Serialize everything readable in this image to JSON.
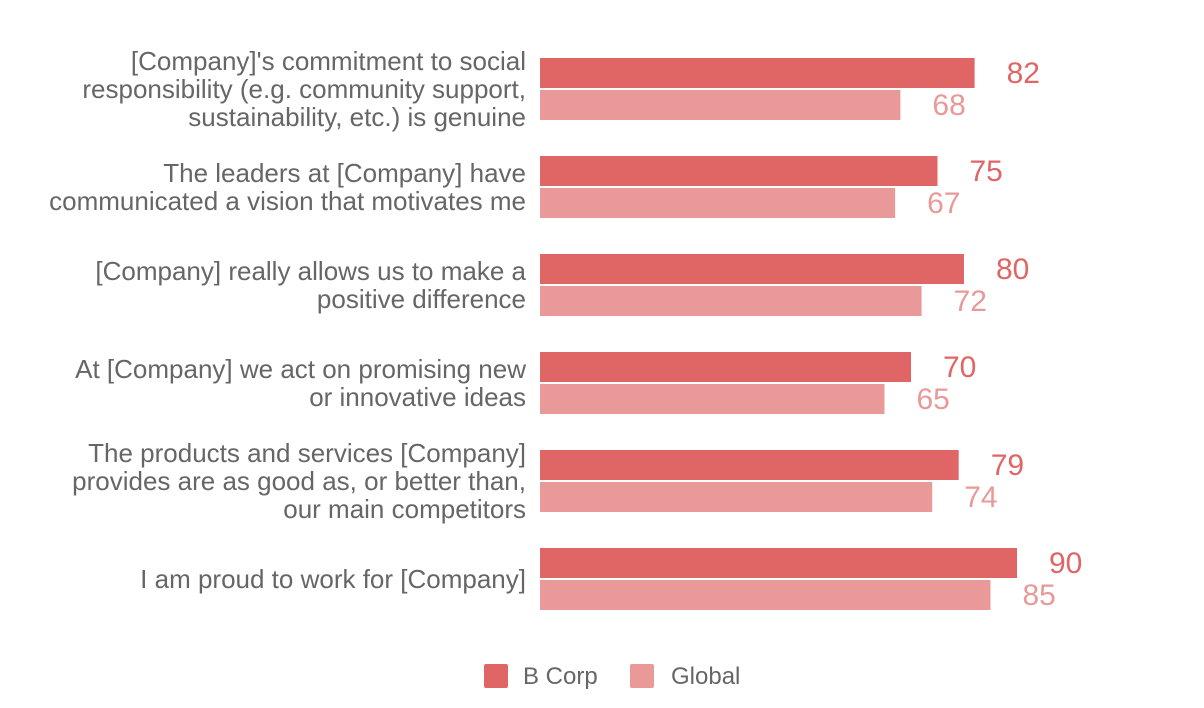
{
  "chart_data": {
    "type": "bar",
    "orientation": "horizontal",
    "categories": [
      [
        "[Company]'s commitment to social",
        "responsibility (e.g. community support,",
        "sustainability, etc.) is genuine"
      ],
      [
        "The leaders at [Company] have",
        "communicated a vision that motivates me"
      ],
      [
        "[Company] really allows us to make a",
        "positive difference"
      ],
      [
        "At [Company] we act on promising new",
        "or innovative ideas"
      ],
      [
        "The products and services [Company]",
        "provides are as good as, or better than,",
        "our main competitors"
      ],
      [
        "I am proud to work for [Company]"
      ]
    ],
    "series": [
      {
        "name": "B Corp",
        "values": [
          82,
          75,
          80,
          70,
          79,
          90
        ],
        "color": "#e06666"
      },
      {
        "name": "Global",
        "values": [
          68,
          67,
          72,
          65,
          74,
          85
        ],
        "color": "#ea9999"
      }
    ],
    "xlim": [
      0,
      100
    ],
    "title": "",
    "xlabel": "",
    "ylabel": "",
    "grid": false,
    "data_labels": true,
    "legend_position": "bottom"
  }
}
